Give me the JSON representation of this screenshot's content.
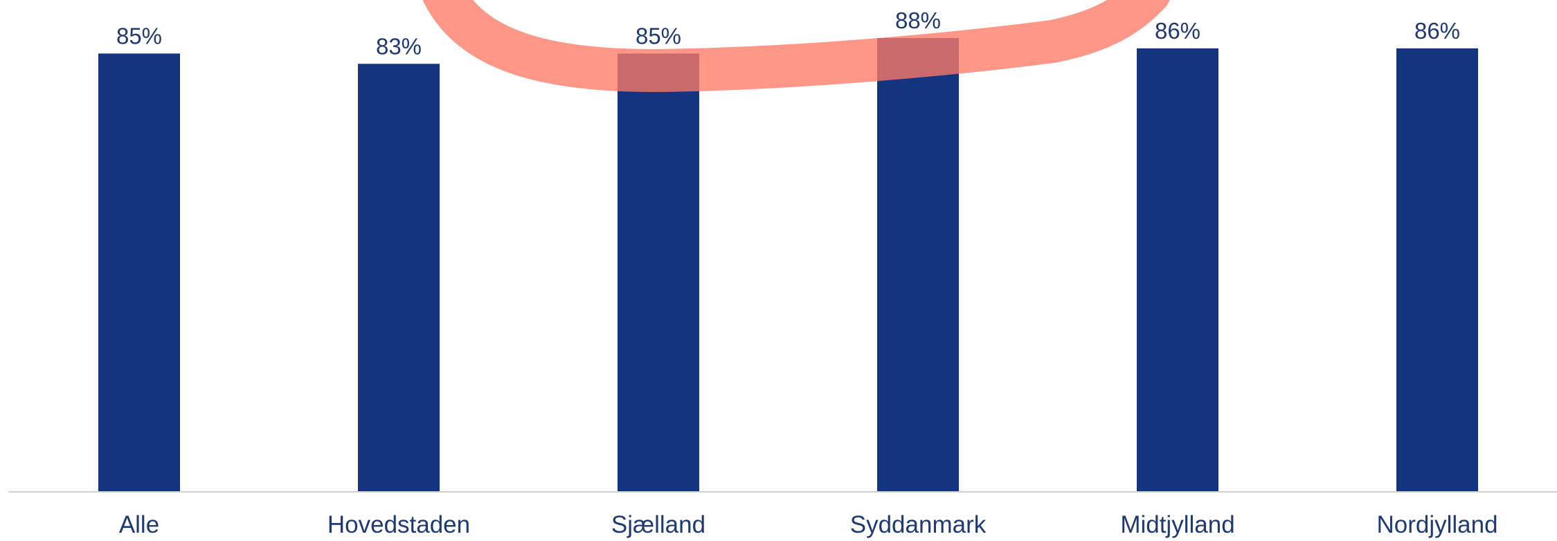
{
  "chart_data": {
    "type": "bar",
    "categories": [
      "Alle",
      "Hovedstaden",
      "Sjælland",
      "Syddanmark",
      "Midtjylland",
      "Nordjylland"
    ],
    "values": [
      85,
      83,
      85,
      88,
      86,
      86
    ],
    "value_labels": [
      "85%",
      "83%",
      "85%",
      "88%",
      "86%",
      "86%"
    ],
    "ylim": [
      0,
      88
    ],
    "grid": false,
    "legend": "none",
    "colors": {
      "bar": "#13357f",
      "highlight_stroke": "#ff7a66",
      "axis": "#d0d0d0",
      "text": "#1f3a73"
    }
  }
}
